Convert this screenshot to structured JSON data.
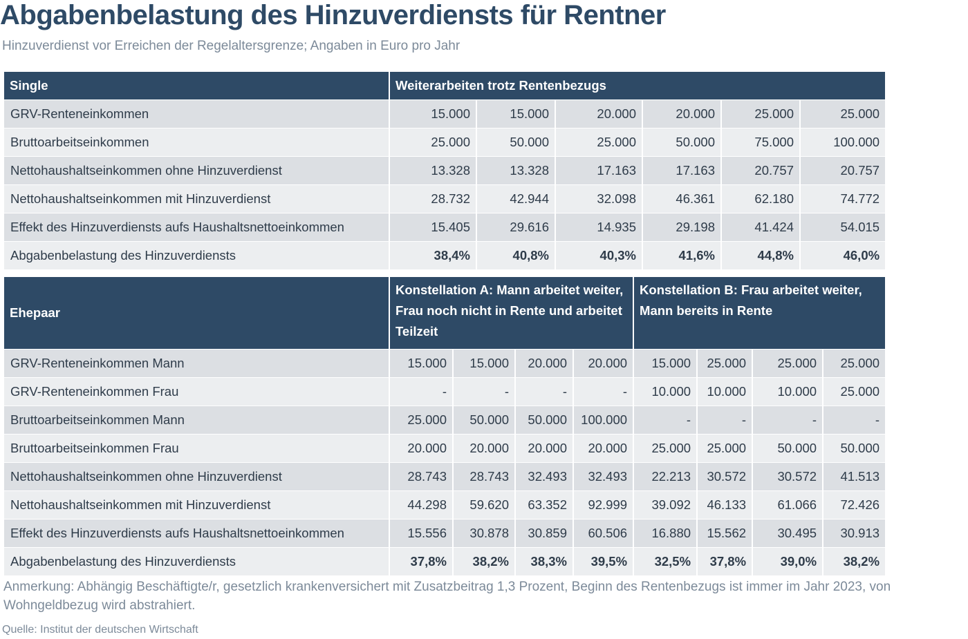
{
  "header": {
    "title": "Abgabenbelastung des Hinzuverdiensts für Rentner",
    "subtitle": "Hinzuverdienst vor Erreichen der Regelaltersgrenze; Angaben in Euro pro Jahr"
  },
  "table1": {
    "header": [
      "Single",
      "Weiterarbeiten trotz Rentenbezugs"
    ],
    "rows": [
      [
        "GRV-Renteneinkommen",
        "15.000",
        "15.000",
        "20.000",
        "20.000",
        "25.000",
        "25.000"
      ],
      [
        "Bruttoarbeitseinkommen",
        "25.000",
        "50.000",
        "25.000",
        "50.000",
        "75.000",
        "100.000"
      ],
      [
        "Nettohaushaltseinkommen ohne Hinzuverdienst",
        "13.328",
        "13.328",
        "17.163",
        "17.163",
        "20.757",
        "20.757"
      ],
      [
        "Nettohaushaltseinkommen mit Hinzuverdienst",
        "28.732",
        "42.944",
        "32.098",
        "46.361",
        "62.180",
        "74.772"
      ],
      [
        "Effekt des Hinzuverdiensts aufs Haushaltsnettoeinkommen",
        "15.405",
        "29.616",
        "14.935",
        "29.198",
        "41.424",
        "54.015"
      ],
      [
        "Abgabenbelastung des Hinzuverdiensts",
        "38,4%",
        "40,8%",
        "40,3%",
        "41,6%",
        "44,8%",
        "46,0%"
      ]
    ]
  },
  "table2": {
    "header": [
      "Ehepaar",
      "Konstellation A: Mann arbeitet weiter, Frau noch nicht in Rente und arbeitet Teilzeit",
      "Konstellation B: Frau arbeitet weiter, Mann bereits in Rente"
    ],
    "rows": [
      [
        "GRV-Renteneinkommen Mann",
        "15.000",
        "15.000",
        "20.000",
        "20.000",
        "15.000",
        "25.000",
        "25.000",
        "25.000"
      ],
      [
        "GRV-Renteneinkommen Frau",
        "-",
        "-",
        "-",
        "-",
        "10.000",
        "10.000",
        "10.000",
        "25.000"
      ],
      [
        "Bruttoarbeitseinkommen Mann",
        "25.000",
        "50.000",
        "50.000",
        "100.000",
        "-",
        "-",
        "-",
        "-"
      ],
      [
        "Bruttoarbeitseinkommen Frau",
        "20.000",
        "20.000",
        "20.000",
        "20.000",
        "25.000",
        "25.000",
        "50.000",
        "50.000"
      ],
      [
        "Nettohaushaltseinkommen ohne Hinzuverdienst",
        "28.743",
        "28.743",
        "32.493",
        "32.493",
        "22.213",
        "30.572",
        "30.572",
        "41.513"
      ],
      [
        "Nettohaushaltseinkommen mit Hinzuverdienst",
        "44.298",
        "59.620",
        "63.352",
        "92.999",
        "39.092",
        "46.133",
        "61.066",
        "72.426"
      ],
      [
        "Effekt des Hinzuverdiensts aufs Haushaltsnettoeinkommen",
        "15.556",
        "30.878",
        "30.859",
        "60.506",
        "16.880",
        "15.562",
        "30.495",
        "30.913"
      ],
      [
        "Abgabenbelastung des Hinzuverdiensts",
        "37,8%",
        "38,2%",
        "38,3%",
        "39,5%",
        "32,5%",
        "37,8%",
        "39,0%",
        "38,2%"
      ]
    ]
  },
  "note": "Anmerkung: Abhängig Beschäftigte/r, gesetzlich krankenversichert mit Zusatzbeitrag 1,3 Prozent, Beginn des Rentenbezugs ist immer im Jahr 2023, von Wohngeldbezug wird abstrahiert.",
  "source": "Quelle: Institut der deutschen Wirtschaft"
}
